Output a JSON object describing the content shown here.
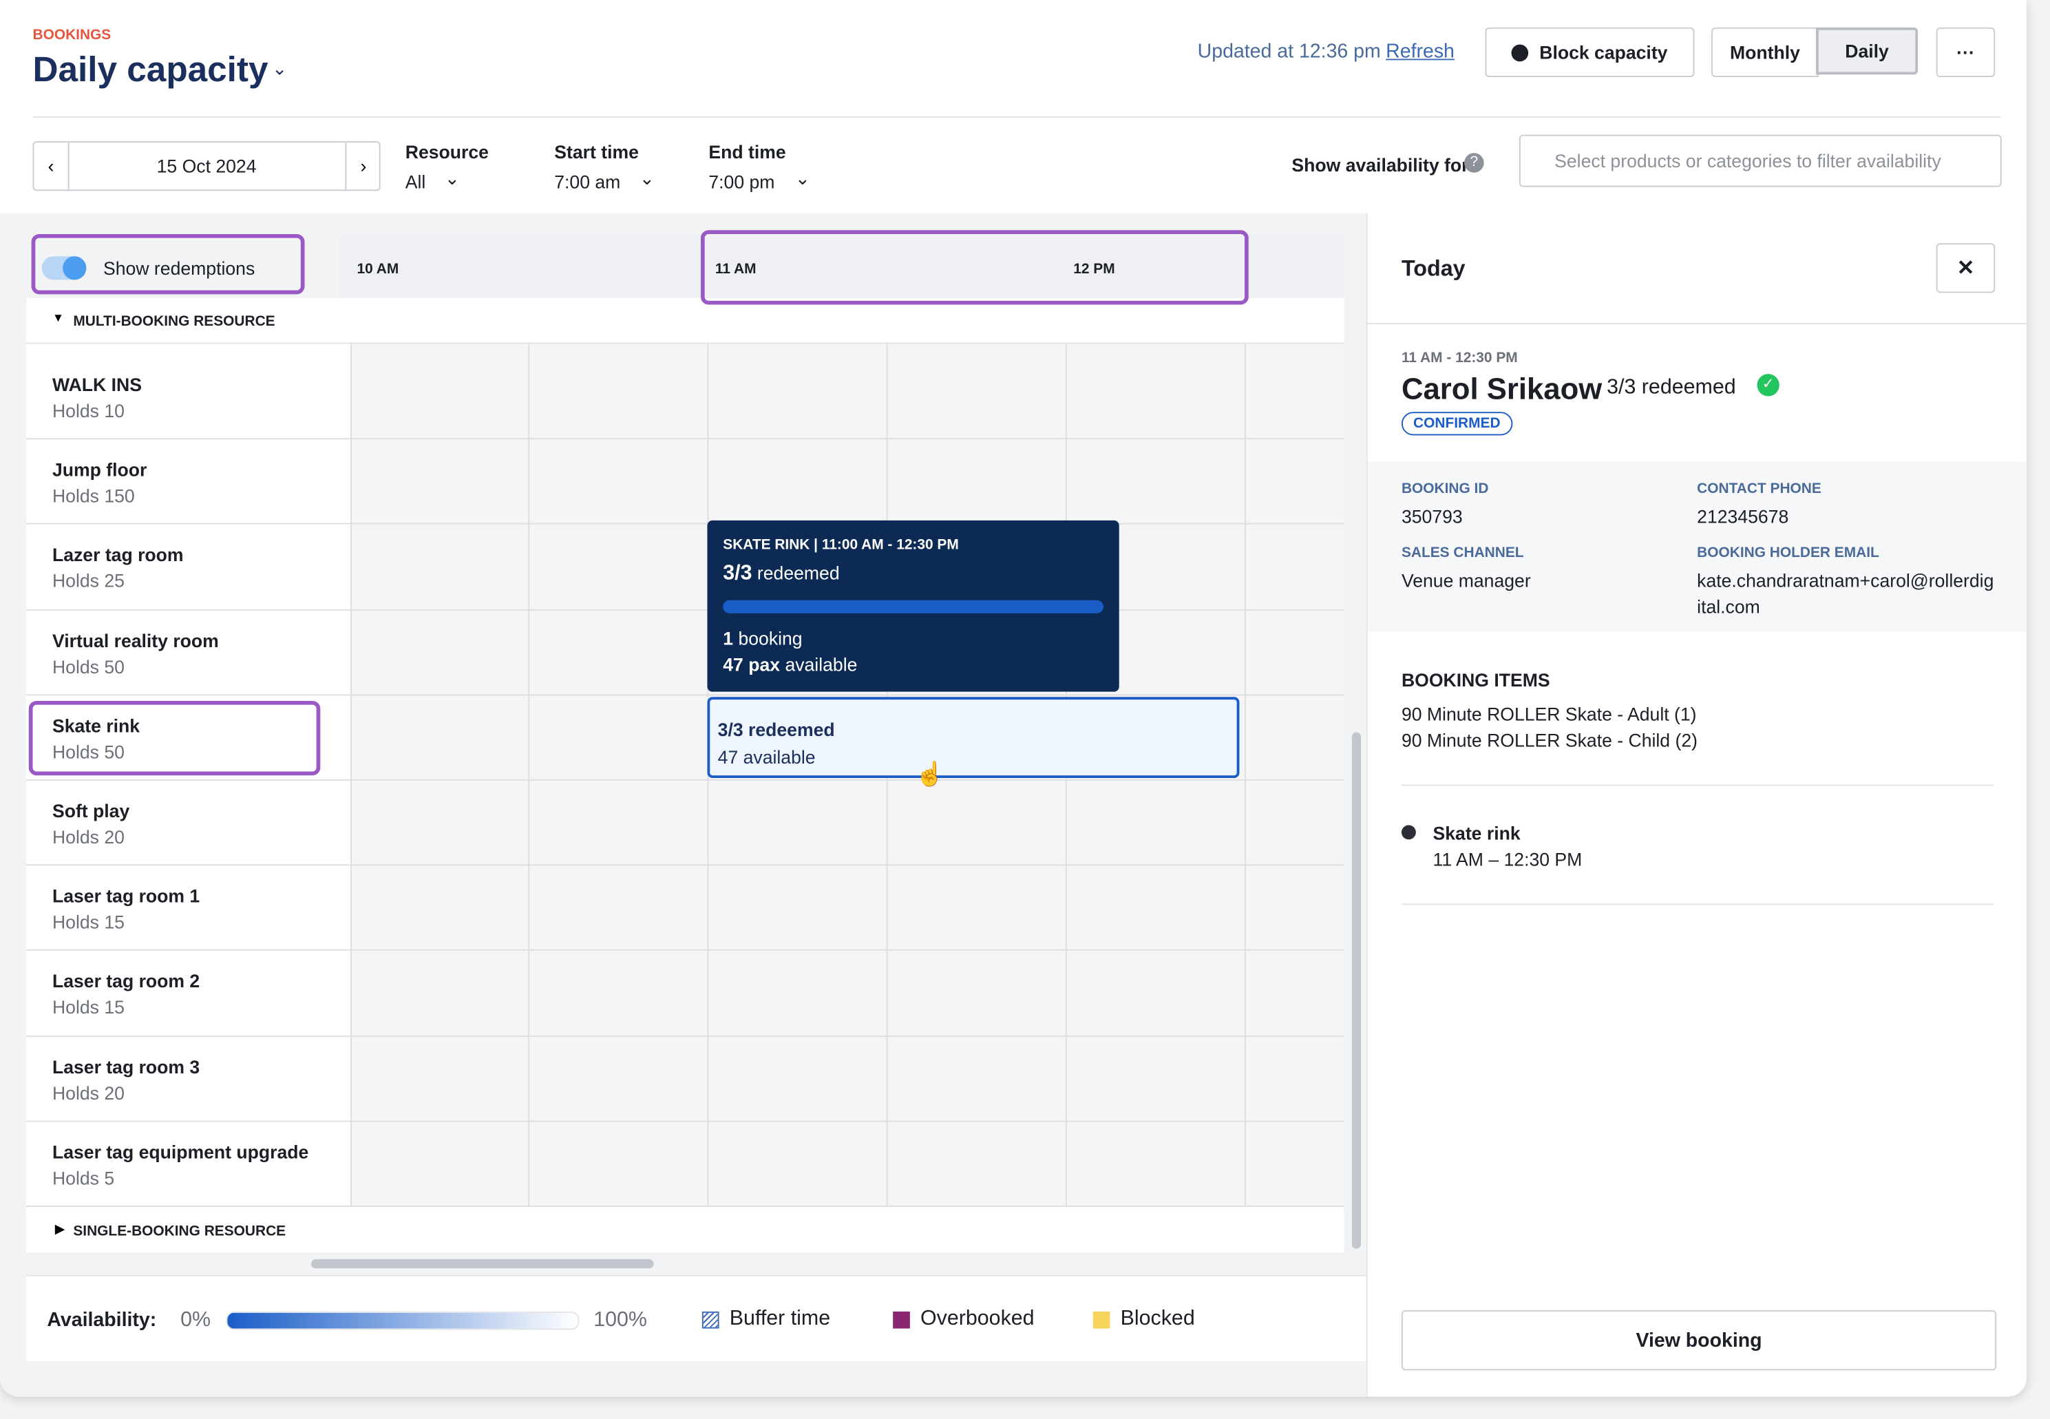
{
  "header": {
    "section": "BOOKINGS",
    "title": "Daily capacity",
    "updated": "Updated at 12:36 pm",
    "refresh": "Refresh",
    "block": "Block capacity",
    "views": [
      "Monthly",
      "Daily"
    ],
    "more": "···"
  },
  "filters": {
    "date": "15 Oct 2024",
    "resource": {
      "label": "Resource",
      "value": "All"
    },
    "start": {
      "label": "Start time",
      "value": "7:00 am"
    },
    "end": {
      "label": "End time",
      "value": "7:00 pm"
    },
    "availability_label": "Show availability for:",
    "placeholder": "Select products or categories to filter availability"
  },
  "grid": {
    "toggle": "Show redemptions",
    "times": [
      "10 AM",
      "11 AM",
      "12 PM"
    ],
    "group": "MULTI-BOOKING RESOURCE",
    "group2": "SINGLE-BOOKING RESOURCE",
    "resources": [
      {
        "name": "WALK INS",
        "holds": "Holds 10"
      },
      {
        "name": "Jump floor",
        "holds": "Holds 150"
      },
      {
        "name": "Lazer tag room",
        "holds": "Holds 25"
      },
      {
        "name": "Virtual reality room",
        "holds": "Holds 50"
      },
      {
        "name": "Skate rink",
        "holds": "Holds 50"
      },
      {
        "name": "Soft play",
        "holds": "Holds 20"
      },
      {
        "name": "Laser tag room 1",
        "holds": "Holds 15"
      },
      {
        "name": "Laser tag room 2",
        "holds": "Holds 15"
      },
      {
        "name": "Laser tag room 3",
        "holds": "Holds 20"
      },
      {
        "name": "Laser tag equipment upgrade",
        "holds": "Holds 5"
      }
    ]
  },
  "tooltip": {
    "heading": "SKATE RINK | 11:00 AM - 12:30 PM",
    "redeemed_count": "3/3",
    "redeemed": "redeemed",
    "bookings_count": "1",
    "bookings": "booking",
    "pax_count": "47 pax",
    "pax": "available"
  },
  "booking_block": {
    "line1": "3/3 redeemed",
    "line2": "47 available"
  },
  "legend": {
    "label": "Availability:",
    "min": "0%",
    "max": "100%",
    "items": [
      "Buffer time",
      "Overbooked",
      "Blocked"
    ]
  },
  "panel": {
    "title": "Today",
    "time": "11 AM - 12:30 PM",
    "name": "Carol Srikaow",
    "redeemed": "3/3 redeemed",
    "status": "CONFIRMED",
    "fields": [
      {
        "label": "BOOKING ID",
        "value": "350793"
      },
      {
        "label": "CONTACT PHONE",
        "value": "212345678"
      },
      {
        "label": "SALES CHANNEL",
        "value": "Venue manager"
      },
      {
        "label": "BOOKING HOLDER EMAIL",
        "value": "kate.chandraratnam+carol@rollerdigital.com"
      }
    ],
    "items_title": "BOOKING ITEMS",
    "items": [
      "90 Minute ROLLER Skate - Adult (1)",
      "90 Minute ROLLER Skate - Child (2)"
    ],
    "resource": "Skate rink",
    "resource_time": "11 AM – 12:30 PM",
    "button": "View booking"
  }
}
